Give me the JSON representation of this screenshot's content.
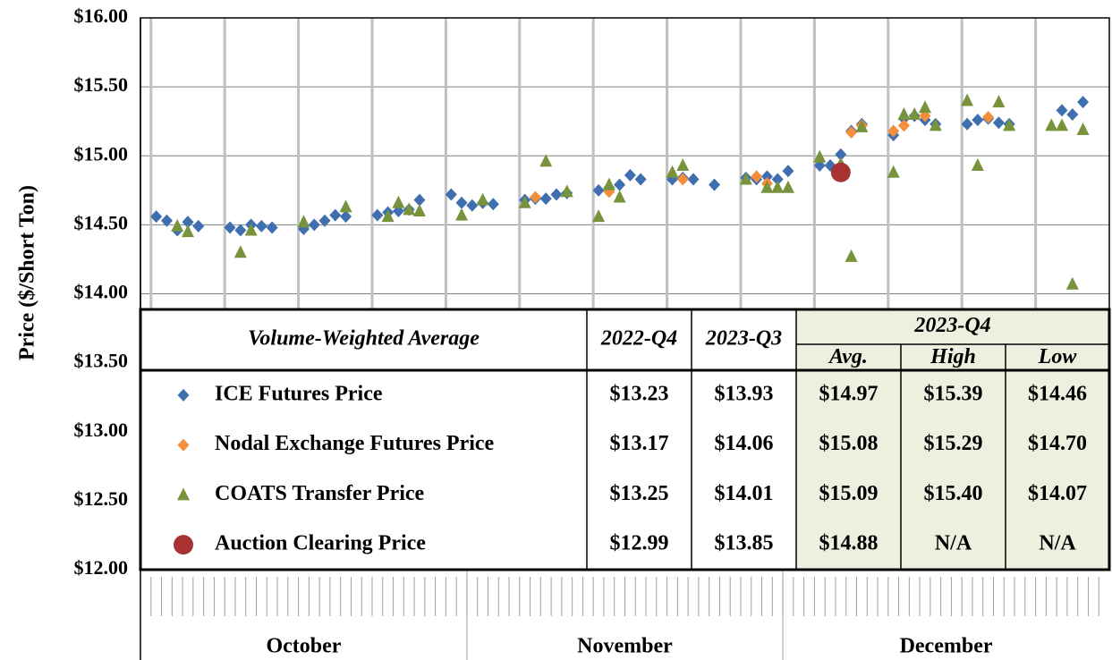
{
  "chart_data": {
    "type": "scatter",
    "ylabel": "Price ($/Short Ton)",
    "categories": [
      null,
      null,
      null,
      null,
      null,
      null,
      null,
      null,
      null,
      null,
      null,
      null,
      null,
      null,
      null,
      null,
      null,
      null,
      null,
      null,
      null,
      null,
      null,
      null,
      null,
      null,
      null,
      null,
      null,
      null,
      null,
      null,
      null,
      null,
      null,
      null,
      null,
      null,
      null,
      null,
      null,
      null,
      null,
      null,
      null,
      null,
      null,
      null,
      null,
      null,
      null,
      null,
      null,
      null,
      null,
      null,
      null,
      null,
      null,
      null,
      null,
      null,
      null,
      null,
      null,
      null,
      null,
      null,
      null,
      null,
      null,
      null,
      null,
      null,
      null,
      null,
      null,
      null,
      null,
      null,
      null,
      null,
      null,
      null,
      null,
      null,
      null,
      null,
      null,
      null,
      null,
      null
    ],
    "months": [
      "October",
      "November",
      "December"
    ],
    "series": [
      {
        "name": "ICE Futures Price",
        "color": "#3f6fae",
        "marker": "diamond",
        "values": [
          null,
          14.56,
          14.53,
          14.46,
          14.52,
          14.49,
          null,
          null,
          14.48,
          14.46,
          14.5,
          14.49,
          14.48,
          null,
          null,
          14.47,
          14.5,
          14.53,
          14.57,
          14.56,
          null,
          null,
          14.57,
          14.59,
          14.6,
          14.61,
          14.68,
          null,
          null,
          14.72,
          14.66,
          14.64,
          14.66,
          14.65,
          null,
          null,
          14.68,
          14.69,
          14.69,
          14.72,
          14.73,
          null,
          null,
          14.75,
          14.77,
          14.79,
          14.86,
          14.83,
          null,
          null,
          14.83,
          14.84,
          14.83,
          null,
          14.79,
          null,
          null,
          14.84,
          14.83,
          14.85,
          14.83,
          14.89,
          null,
          null,
          14.93,
          14.93,
          15.01,
          15.18,
          15.23,
          null,
          null,
          15.15,
          15.27,
          15.29,
          15.26,
          15.23,
          null,
          null,
          15.23,
          15.26,
          15.27,
          15.24,
          15.23,
          null,
          null,
          null,
          null,
          15.33,
          15.3,
          15.39,
          null,
          null
        ]
      },
      {
        "name": "Nodal Exchange Futures Price",
        "color": "#f28e3c",
        "marker": "diamond",
        "values": [
          null,
          null,
          null,
          null,
          null,
          null,
          null,
          null,
          null,
          null,
          null,
          null,
          null,
          null,
          null,
          null,
          null,
          null,
          null,
          null,
          null,
          null,
          null,
          null,
          null,
          null,
          null,
          null,
          null,
          null,
          null,
          null,
          null,
          null,
          null,
          null,
          null,
          14.7,
          null,
          null,
          null,
          null,
          null,
          null,
          14.74,
          null,
          null,
          null,
          null,
          null,
          null,
          14.83,
          null,
          null,
          null,
          null,
          null,
          null,
          14.85,
          14.8,
          null,
          null,
          null,
          null,
          null,
          null,
          null,
          15.17,
          15.22,
          null,
          null,
          15.18,
          15.22,
          null,
          15.29,
          null,
          null,
          null,
          null,
          null,
          15.28,
          null,
          null,
          null,
          null,
          null,
          null,
          null,
          null,
          null,
          null,
          null
        ]
      },
      {
        "name": "COATS Transfer Price",
        "color": "#77933c",
        "marker": "triangle",
        "values": [
          null,
          null,
          null,
          14.49,
          14.45,
          null,
          null,
          null,
          null,
          14.3,
          14.46,
          null,
          null,
          null,
          null,
          14.52,
          null,
          null,
          null,
          14.63,
          null,
          null,
          null,
          14.56,
          14.66,
          14.61,
          14.6,
          null,
          null,
          null,
          14.57,
          null,
          14.68,
          null,
          null,
          null,
          14.66,
          null,
          14.96,
          null,
          14.74,
          null,
          null,
          14.56,
          14.79,
          14.7,
          null,
          null,
          null,
          null,
          14.88,
          14.93,
          null,
          null,
          null,
          null,
          null,
          14.83,
          null,
          14.77,
          14.77,
          14.77,
          null,
          null,
          14.99,
          null,
          14.94,
          14.27,
          15.21,
          null,
          null,
          14.88,
          15.3,
          15.3,
          15.35,
          15.22,
          null,
          null,
          15.4,
          14.93,
          null,
          15.39,
          15.22,
          null,
          null,
          null,
          15.22,
          15.22,
          14.07,
          15.19,
          null,
          null
        ]
      },
      {
        "name": "Auction Clearing Price",
        "color": "#a83232",
        "marker": "circle",
        "values": [
          null,
          null,
          null,
          null,
          null,
          null,
          null,
          null,
          null,
          null,
          null,
          null,
          null,
          null,
          null,
          null,
          null,
          null,
          null,
          null,
          null,
          null,
          null,
          null,
          null,
          null,
          null,
          null,
          null,
          null,
          null,
          null,
          null,
          null,
          null,
          null,
          null,
          null,
          null,
          null,
          null,
          null,
          null,
          null,
          null,
          null,
          null,
          null,
          null,
          null,
          null,
          null,
          null,
          null,
          null,
          null,
          null,
          null,
          null,
          null,
          null,
          null,
          null,
          null,
          null,
          null,
          14.88,
          null,
          null,
          null,
          null,
          null,
          null,
          null,
          null,
          null,
          null,
          null,
          null,
          null,
          null,
          null,
          null,
          null,
          null,
          null,
          null,
          null,
          null,
          null,
          null,
          null
        ]
      }
    ],
    "ylim": [
      12,
      16
    ],
    "yticks": [
      {
        "value": 12,
        "label": "$12.00"
      },
      {
        "value": 12.5,
        "label": "$12.50"
      },
      {
        "value": 13,
        "label": "$13.00"
      },
      {
        "value": 13.5,
        "label": "$13.50"
      },
      {
        "value": 14,
        "label": "$14.00"
      },
      {
        "value": 14.5,
        "label": "$14.50"
      },
      {
        "value": 15,
        "label": "$15.00"
      },
      {
        "value": 15.5,
        "label": "$15.50"
      },
      {
        "value": 16,
        "label": "$16.00"
      }
    ],
    "grid": true
  },
  "table": {
    "header": "Volume-Weighted Average",
    "columns": [
      "2022-Q4",
      "2023-Q3"
    ],
    "group": "2023-Q4",
    "subcolumns": [
      "Avg.",
      "High",
      "Low"
    ],
    "rows": [
      [
        "$13.23",
        "$13.93",
        "$14.97",
        "$15.39",
        "$14.46"
      ],
      [
        "$13.17",
        "$14.06",
        "$15.08",
        "$15.29",
        "$14.70"
      ],
      [
        "$13.25",
        "$14.01",
        "$15.09",
        "$15.40",
        "$14.07"
      ],
      [
        "$12.99",
        "$13.85",
        "$14.88",
        "N/A",
        "N/A"
      ]
    ]
  }
}
